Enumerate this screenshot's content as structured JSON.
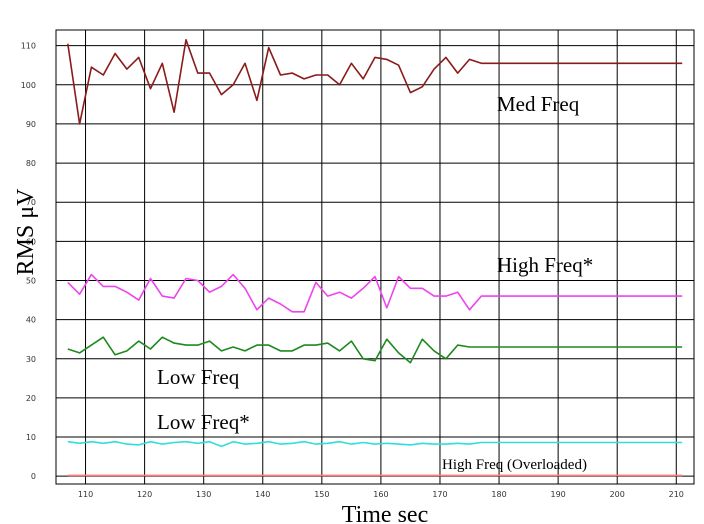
{
  "chart_data": {
    "type": "line",
    "title": "",
    "xlabel": "Time sec",
    "ylabel": "RMS μV",
    "xlim": [
      105,
      213
    ],
    "ylim": [
      -2,
      114
    ],
    "x_ticks": [
      110,
      120,
      130,
      140,
      150,
      160,
      170,
      180,
      190,
      200,
      210
    ],
    "y_ticks": [
      0,
      10,
      20,
      30,
      40,
      50,
      60,
      70,
      80,
      90,
      100,
      110
    ],
    "grid": true,
    "x": [
      107,
      109,
      111,
      113,
      115,
      117,
      119,
      121,
      123,
      125,
      127,
      129,
      131,
      133,
      135,
      137,
      139,
      141,
      143,
      145,
      147,
      149,
      151,
      153,
      155,
      157,
      159,
      161,
      163,
      165,
      167,
      169,
      171,
      173,
      175,
      177,
      179,
      181,
      183,
      185,
      187,
      189,
      191,
      193,
      195,
      197,
      199,
      201,
      203,
      205,
      207,
      209,
      211
    ],
    "series": [
      {
        "name": "Med Freq",
        "color": "#8b1a1a",
        "values": [
          110.5,
          90,
          104.5,
          102.5,
          108,
          104,
          107,
          99,
          105.5,
          93,
          111.5,
          103,
          103,
          97.5,
          100,
          105.5,
          96,
          109.5,
          102.5,
          103,
          101.5,
          102.5,
          102.5,
          100,
          105.5,
          101.5,
          107,
          106.5,
          105,
          98,
          99.5,
          104,
          107,
          103,
          106.5,
          105.5,
          105.5,
          105.5,
          105.5,
          105.5,
          105.5,
          105.5,
          105.5,
          105.5,
          105.5,
          105.5,
          105.5,
          105.5,
          105.5,
          105.5,
          105.5,
          105.5,
          105.5
        ]
      },
      {
        "name": "High Freq*",
        "color": "#ee44ee",
        "values": [
          49.5,
          46.5,
          51.5,
          48.5,
          48.5,
          47,
          45,
          50.5,
          46,
          45.5,
          50.5,
          50,
          47,
          48.5,
          51.5,
          48,
          42.5,
          45.5,
          44,
          42,
          42,
          49.5,
          46,
          47,
          45.5,
          48,
          51,
          43,
          51,
          48,
          48,
          46,
          46,
          47,
          42.5,
          46,
          46,
          46,
          46,
          46,
          46,
          46,
          46,
          46,
          46,
          46,
          46,
          46,
          46,
          46,
          46,
          46,
          46
        ]
      },
      {
        "name": "Low Freq",
        "color": "#1e8a1e",
        "values": [
          32.5,
          31.5,
          33.5,
          35.5,
          31,
          32,
          34.5,
          32.5,
          35.5,
          34,
          33.5,
          33.5,
          34.5,
          32,
          33,
          32,
          33.5,
          33.5,
          32,
          32,
          33.5,
          33.5,
          34,
          32,
          34.5,
          30,
          29.5,
          35,
          31.5,
          29,
          35,
          32,
          30,
          33.5,
          33,
          33,
          33,
          33,
          33,
          33,
          33,
          33,
          33,
          33,
          33,
          33,
          33,
          33,
          33,
          33,
          33,
          33,
          33
        ]
      },
      {
        "name": "Low Freq*",
        "color": "#33dddd",
        "values": [
          8.8,
          8.4,
          8.8,
          8.4,
          8.8,
          8.2,
          8,
          8.8,
          8.2,
          8.6,
          8.8,
          8.4,
          8.8,
          7.6,
          8.8,
          8.2,
          8.4,
          8.8,
          8.2,
          8.4,
          8.8,
          8.2,
          8.4,
          8.8,
          8.2,
          8.6,
          8.2,
          8.4,
          8.2,
          8,
          8.4,
          8.2,
          8.2,
          8.4,
          8.2,
          8.6,
          8.6,
          8.6,
          8.6,
          8.6,
          8.6,
          8.6,
          8.6,
          8.6,
          8.6,
          8.6,
          8.6,
          8.6,
          8.6,
          8.6,
          8.6,
          8.6,
          8.6
        ]
      },
      {
        "name": "High Freq (Overloaded)",
        "color": "#ff7777",
        "values": [
          0.2,
          0.2,
          0.2,
          0.2,
          0.2,
          0.2,
          0.2,
          0.2,
          0.2,
          0.2,
          0.2,
          0.2,
          0.2,
          0.2,
          0.2,
          0.2,
          0.2,
          0.2,
          0.2,
          0.2,
          0.2,
          0.2,
          0.2,
          0.2,
          0.2,
          0.2,
          0.2,
          0.2,
          0.2,
          0.2,
          0.2,
          0.2,
          0.2,
          0.2,
          0.2,
          0.2,
          0.2,
          0.2,
          0.2,
          0.2,
          0.2,
          0.2,
          0.2,
          0.2,
          0.2,
          0.2,
          0.2,
          0.2,
          0.2,
          0.2,
          0.2,
          0.2,
          0.2
        ]
      }
    ]
  }
}
